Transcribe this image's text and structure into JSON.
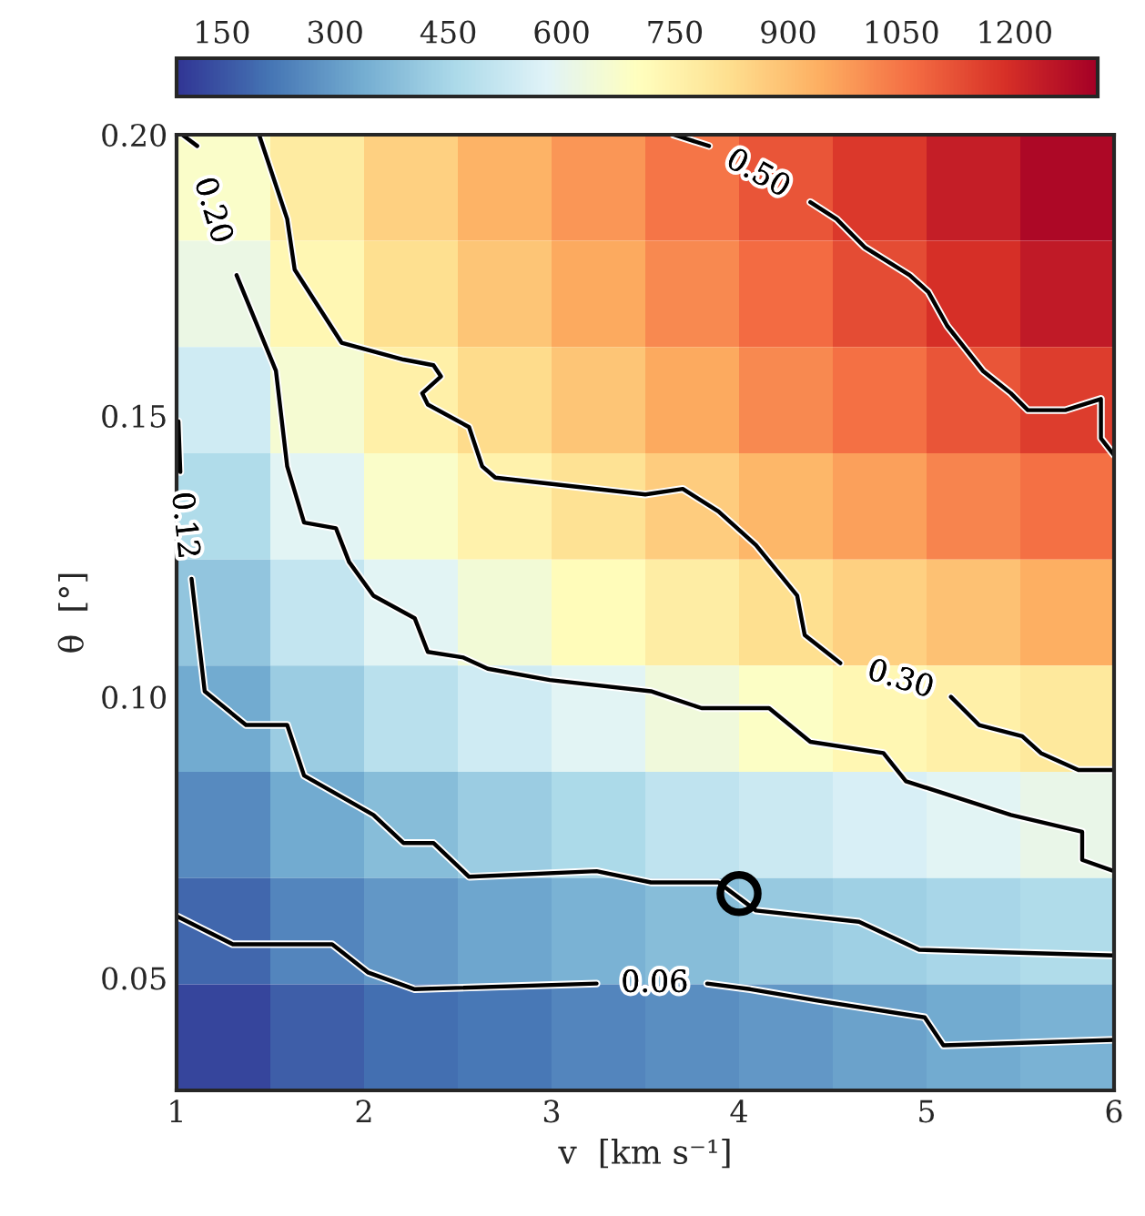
{
  "chart_data": {
    "type": "heatmap",
    "xlabel": "v  [km s⁻¹]",
    "ylabel": "θ  [°]",
    "x": [
      1.25,
      1.75,
      2.25,
      2.75,
      3.25,
      3.75,
      4.25,
      4.75,
      5.25,
      5.75
    ],
    "y": [
      0.1906,
      0.1717,
      0.1528,
      0.1339,
      0.115,
      0.0961,
      0.0772,
      0.0583,
      0.0394
    ],
    "cells": [
      [
        680,
        780,
        860,
        930,
        990,
        1050,
        1110,
        1170,
        1230,
        1290
      ],
      [
        620,
        730,
        820,
        890,
        950,
        1010,
        1070,
        1130,
        1190,
        1240
      ],
      [
        540,
        660,
        760,
        830,
        890,
        950,
        1010,
        1060,
        1110,
        1160
      ],
      [
        470,
        590,
        680,
        750,
        810,
        870,
        920,
        970,
        1020,
        1060
      ],
      [
        400,
        510,
        590,
        650,
        710,
        770,
        820,
        860,
        900,
        940
      ],
      [
        330,
        420,
        490,
        540,
        590,
        640,
        690,
        730,
        760,
        790
      ],
      [
        260,
        330,
        380,
        420,
        460,
        500,
        530,
        560,
        590,
        610
      ],
      [
        190,
        250,
        290,
        320,
        350,
        380,
        410,
        430,
        450,
        470
      ],
      [
        120,
        170,
        200,
        220,
        250,
        270,
        290,
        310,
        330,
        350
      ]
    ],
    "clim": [
      90,
      1310
    ],
    "cticks": [
      150,
      300,
      450,
      600,
      750,
      900,
      1050,
      1200
    ],
    "xlim": [
      1,
      6
    ],
    "ylim": [
      0.03,
      0.2
    ],
    "xticks": [
      1,
      2,
      3,
      4,
      5,
      6
    ],
    "yticks": [
      {
        "value": 0.05,
        "label": "0.05"
      },
      {
        "value": 0.1,
        "label": "0.10"
      },
      {
        "value": 0.15,
        "label": "0.15"
      },
      {
        "value": 0.2,
        "label": "0.20"
      }
    ],
    "grid": false,
    "series": [
      {
        "type": "line",
        "name": "0.50",
        "color": "#000000",
        "x": [
          3.65,
          3.84,
          4.1,
          4.38,
          4.52,
          4.67,
          4.91,
          5.01,
          5.11,
          5.3,
          5.45,
          5.54,
          5.74,
          5.93,
          5.93,
          6.0
        ],
        "values": [
          0.2,
          0.198,
          null,
          0.188,
          0.185,
          0.18,
          0.175,
          0.172,
          0.166,
          0.158,
          0.154,
          0.151,
          0.151,
          0.153,
          0.146,
          0.143
        ]
      },
      {
        "type": "line",
        "name": "0.30",
        "color": "#000000",
        "x": [
          1.44,
          1.59,
          1.63,
          1.88,
          2.21,
          2.37,
          2.41,
          2.31,
          2.34,
          2.56,
          2.63,
          2.7,
          3.5,
          3.7,
          3.89,
          4.09,
          4.31,
          4.35,
          4.54,
          4.86,
          5.13,
          5.28,
          5.51,
          5.61,
          5.81,
          6.0
        ],
        "values": [
          0.2,
          0.185,
          0.176,
          0.163,
          0.16,
          0.159,
          0.157,
          0.154,
          0.152,
          0.148,
          0.141,
          0.139,
          0.136,
          0.137,
          0.133,
          0.127,
          0.118,
          0.111,
          0.106,
          null,
          0.1,
          0.095,
          0.093,
          0.09,
          0.087,
          0.087
        ]
      },
      {
        "type": "line",
        "name": "0.20",
        "color": "#000000",
        "x": [
          1.03,
          1.11,
          1.19,
          1.32,
          1.53,
          1.59,
          1.68,
          1.85,
          1.92,
          2.05,
          2.27,
          2.34,
          2.53,
          2.66,
          2.99,
          3.53,
          3.8,
          4.16,
          4.38,
          4.77,
          4.89,
          5.45,
          5.83,
          5.83,
          6.0
        ],
        "values": [
          0.2,
          0.198,
          null,
          0.175,
          0.158,
          0.141,
          0.131,
          0.13,
          0.124,
          0.118,
          0.114,
          0.108,
          0.107,
          0.105,
          0.103,
          0.101,
          0.098,
          0.098,
          0.092,
          0.09,
          0.085,
          0.079,
          0.076,
          0.071,
          0.069
        ]
      },
      {
        "type": "line",
        "name": "0.12",
        "color": "#000000",
        "x": [
          1.01,
          1.02,
          1.04,
          1.08,
          1.15,
          1.37,
          1.59,
          1.68,
          2.05,
          2.21,
          2.37,
          2.56,
          3.24,
          3.53,
          3.89,
          4.09,
          4.64,
          4.96,
          6.0
        ],
        "values": [
          0.149,
          0.14,
          null,
          0.121,
          0.101,
          0.095,
          0.095,
          0.086,
          0.079,
          0.074,
          0.074,
          0.068,
          0.069,
          0.067,
          0.067,
          0.062,
          0.06,
          0.055,
          0.054
        ]
      },
      {
        "type": "line",
        "name": "0.06",
        "color": "#000000",
        "x": [
          1.0,
          1.3,
          1.83,
          2.02,
          2.27,
          3.24,
          3.55,
          3.83,
          4.06,
          4.41,
          4.99,
          5.09,
          6.0
        ],
        "values": [
          0.061,
          0.056,
          0.056,
          0.051,
          0.048,
          0.049,
          null,
          0.049,
          0.048,
          0.046,
          0.043,
          0.038,
          0.039
        ]
      },
      {
        "type": "scatter",
        "color": "#000000",
        "marker": "circle",
        "x": [
          4.0
        ],
        "values": [
          0.065
        ]
      }
    ]
  }
}
